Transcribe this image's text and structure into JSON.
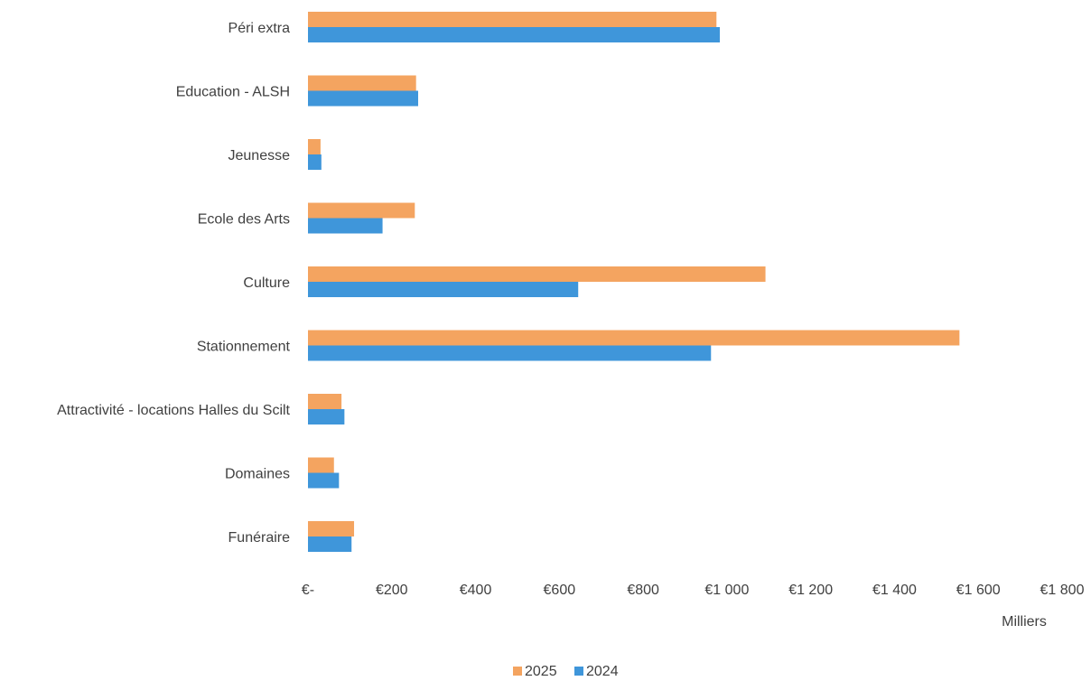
{
  "chart_data": {
    "type": "bar",
    "orientation": "horizontal",
    "title": "",
    "xlabel": "",
    "ylabel": "",
    "unit_label": "Milliers",
    "categories": [
      "Péri extra",
      "Education - ALSH",
      "Jeunesse",
      "Ecole des Arts",
      "Culture",
      "Stationnement",
      "Attractivité - locations Halles du Scilt",
      "Domaines",
      "Funéraire"
    ],
    "series": [
      {
        "name": "2025",
        "color": "#F4A460",
        "values": [
          975,
          258,
          30,
          255,
          1092,
          1555,
          80,
          62,
          110
        ]
      },
      {
        "name": "2024",
        "color": "#3F96DA",
        "values": [
          983,
          263,
          32,
          178,
          645,
          962,
          87,
          74,
          104
        ]
      }
    ],
    "xlim": [
      0,
      1800
    ],
    "x_ticks": [
      0,
      200,
      400,
      600,
      800,
      1000,
      1200,
      1400,
      1600,
      1800
    ],
    "x_tick_labels": [
      "€-",
      "€200",
      "€400",
      "€600",
      "€800",
      "€1 000",
      "€1 200",
      "€1 400",
      "€1 600",
      "€1 800"
    ],
    "grid": false,
    "legend_position": "bottom"
  }
}
